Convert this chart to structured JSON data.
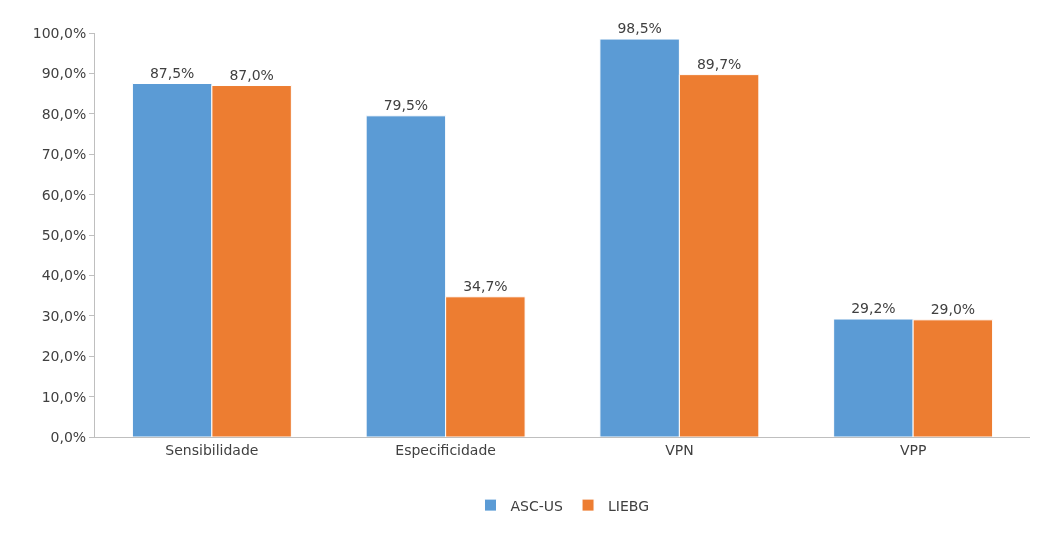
{
  "chart_data": {
    "type": "bar",
    "categories": [
      "Sensibilidade",
      "Especificidade",
      "VPN",
      "VPP"
    ],
    "series": [
      {
        "name": "ASC-US",
        "color": "#5b9bd5",
        "values": [
          87.5,
          79.5,
          98.5,
          29.2
        ],
        "value_labels": [
          "87,5%",
          "79,5%",
          "98,5%",
          "29,2%"
        ]
      },
      {
        "name": "LIEBG",
        "color": "#ed7d31",
        "values": [
          87.0,
          34.7,
          89.7,
          29.0
        ],
        "value_labels": [
          "87,0%",
          "34,7%",
          "89,7%",
          "29,0%"
        ]
      }
    ],
    "ylim": [
      0,
      100
    ],
    "yticks": [
      {
        "value": 0,
        "label": "0,0%"
      },
      {
        "value": 10,
        "label": "10,0%"
      },
      {
        "value": 20,
        "label": "20,0%"
      },
      {
        "value": 30,
        "label": "30,0%"
      },
      {
        "value": 40,
        "label": "40,0%"
      },
      {
        "value": 50,
        "label": "50,0%"
      },
      {
        "value": 60,
        "label": "60,0%"
      },
      {
        "value": 70,
        "label": "70,0%"
      },
      {
        "value": 80,
        "label": "80,0%"
      },
      {
        "value": 90,
        "label": "90,0%"
      },
      {
        "value": 100,
        "label": "100,0%"
      }
    ],
    "legend": "bottom"
  }
}
